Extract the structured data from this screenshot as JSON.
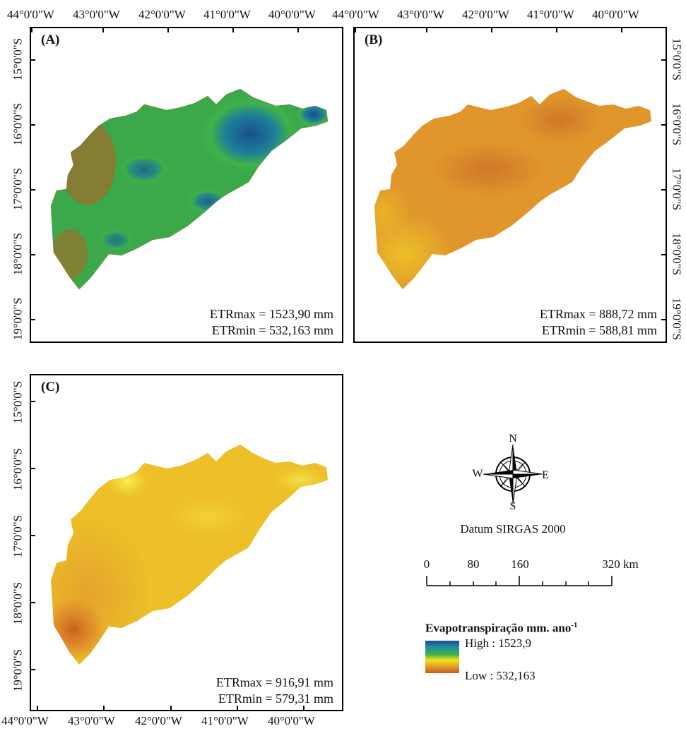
{
  "lon_ticks": [
    "44°0'0\"W",
    "43°0'0\"W",
    "42°0'0\"W",
    "41°0'0\"W",
    "40°0'0\"W"
  ],
  "lat_ticks": [
    "15°0'0\"S",
    "16°0'0\"S",
    "17°0'0\"S",
    "18°0'0\"S",
    "19°0'0\"S"
  ],
  "panels": {
    "a": {
      "label": "(A)",
      "etr_max": "ETRmax = 1523,90 mm",
      "etr_min": "ETRmin = 532,163 mm"
    },
    "b": {
      "label": "(B)",
      "etr_max": "ETRmax = 888,72 mm",
      "etr_min": "ETRmin = 588,81 mm"
    },
    "c": {
      "label": "(C)",
      "etr_max": "ETRmax = 916,91 mm",
      "etr_min": "ETRmin = 579,31 mm"
    }
  },
  "compass": {
    "north": "N",
    "south": "S",
    "east": "E",
    "west": "W"
  },
  "datum": "Datum SIRGAS 2000",
  "scale_bar": {
    "labels": [
      "0",
      "80",
      "160",
      "320 km"
    ]
  },
  "legend": {
    "title": "Evapotranspiração mm. ano",
    "title_sup": "-1",
    "high": "High : 1523,9",
    "low": "Low : 532,163",
    "colors": {
      "high": "#1c4a8f",
      "mid_blue": "#1f8fa0",
      "green": "#3fb24a",
      "yellow": "#f2e21a",
      "orange": "#e09a2a",
      "low": "#c85a1e"
    }
  },
  "map_colors": {
    "panel_b": {
      "base": "#e0962b",
      "dark": "#cf7828",
      "light": "#ecc02a"
    },
    "panel_c": {
      "base": "#edbf28",
      "dark": "#d77f2a",
      "light": "#f4e034"
    }
  }
}
